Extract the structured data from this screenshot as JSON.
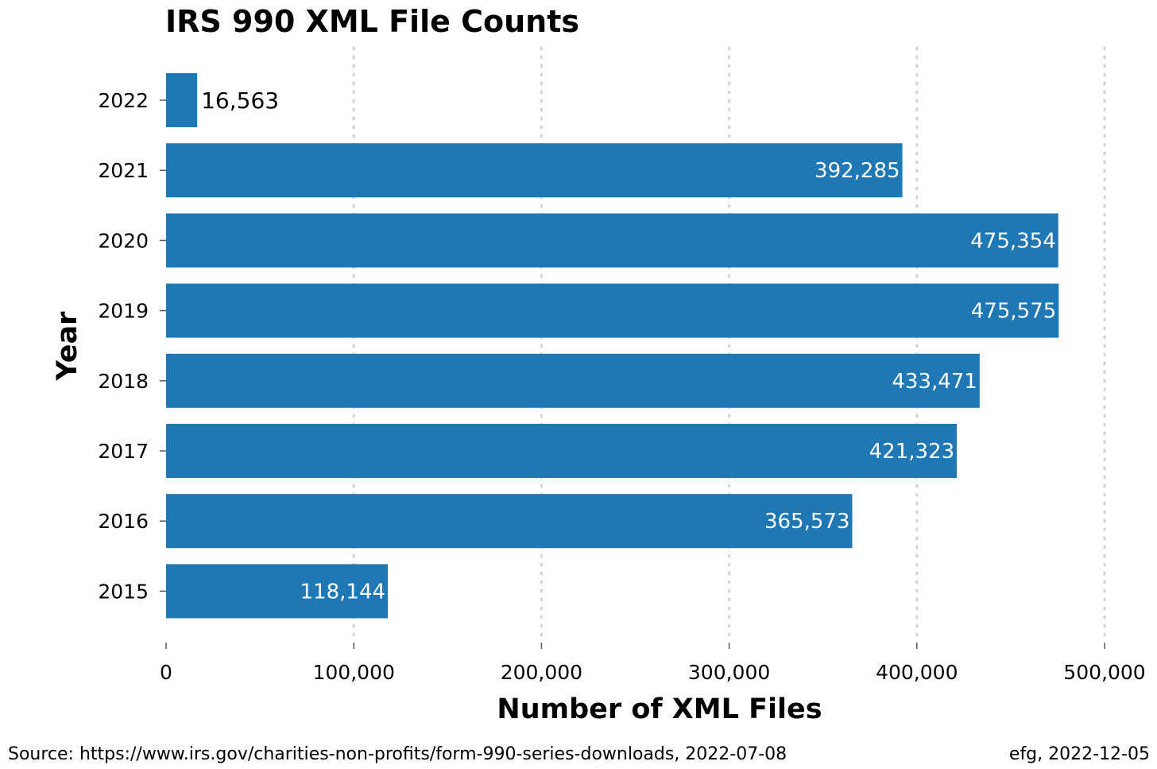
{
  "chart_data": {
    "type": "bar",
    "orientation": "horizontal",
    "title": "IRS 990 XML File Counts",
    "xlabel": "Number of XML Files",
    "ylabel": "Year",
    "categories": [
      "2022",
      "2021",
      "2020",
      "2019",
      "2018",
      "2017",
      "2016",
      "2015"
    ],
    "values": [
      16563,
      392285,
      475354,
      475575,
      433471,
      421323,
      365573,
      118144
    ],
    "value_labels": [
      "16,563",
      "392,285",
      "475,354",
      "475,575",
      "433,471",
      "421,323",
      "365,573",
      "118,144"
    ],
    "xlim": [
      0,
      500000
    ],
    "xticks": [
      0,
      100000,
      200000,
      300000,
      400000,
      500000
    ],
    "xtick_labels": [
      "0",
      "100,000",
      "200,000",
      "300,000",
      "400,000",
      "500,000"
    ],
    "grid": "vertical dotted",
    "bar_color": "#1f77b4"
  },
  "footer": {
    "source": "Source:  https://www.irs.gov/charities-non-profits/form-990-series-downloads, 2022-07-08",
    "credit": "efg, 2022-12-05"
  }
}
